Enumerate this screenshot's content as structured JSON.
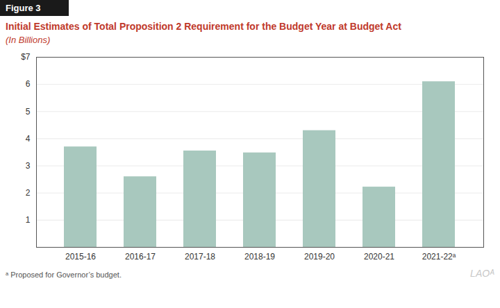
{
  "chart_data": {
    "type": "bar",
    "title": "Initial Estimates of Total Proposition 2 Requirement for the Budget Year at Budget Act",
    "subtitle": "(In Billions)",
    "annotations": [
      "Figure 3",
      "ᵃ Proposed for Governor’s budget.",
      "LAOᴬ"
    ],
    "categories": [
      "2015-16",
      "2016-17",
      "2017-18",
      "2018-19",
      "2019-20",
      "2020-21",
      "2021-22ᵃ"
    ],
    "values": [
      3.7,
      2.6,
      3.55,
      3.48,
      4.3,
      2.22,
      6.1
    ],
    "color": "#a8c8be",
    "ylim": [
      0,
      7
    ],
    "yticks": [
      1,
      2,
      3,
      4,
      5,
      6,
      {
        "value": 7,
        "label": "$7"
      }
    ],
    "grid": true
  }
}
